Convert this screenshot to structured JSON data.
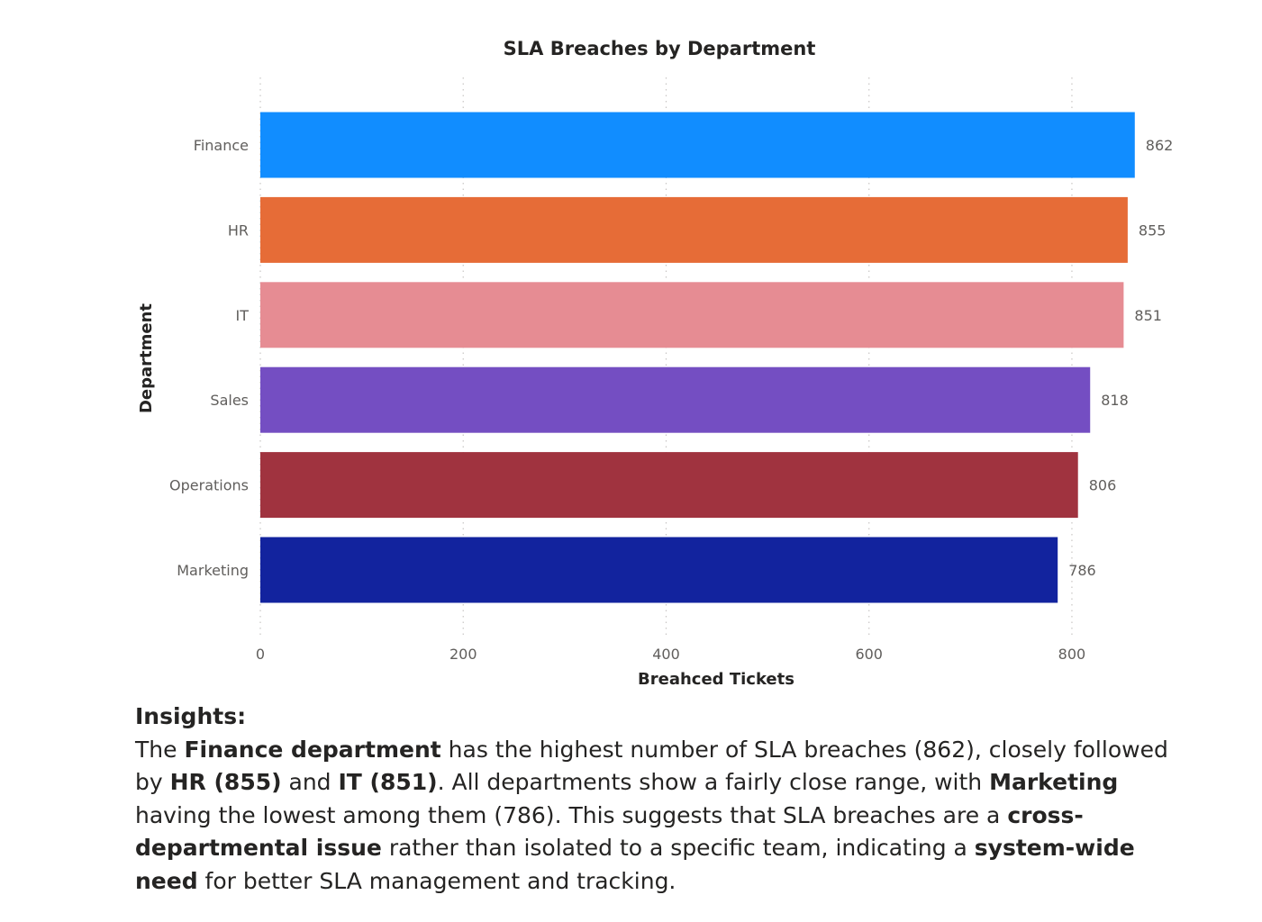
{
  "chart_data": {
    "type": "bar",
    "orientation": "horizontal",
    "title": "SLA Breaches by Department",
    "xlabel": "Breahced Tickets",
    "ylabel": "Department",
    "categories": [
      "Finance",
      "HR",
      "IT",
      "Sales",
      "Operations",
      "Marketing"
    ],
    "values": [
      862,
      855,
      851,
      818,
      806,
      786
    ],
    "data_labels": [
      "862",
      "855",
      "851",
      "818",
      "806",
      "786"
    ],
    "colors": [
      "#118DFF",
      "#E66C37",
      "#E68C93",
      "#744EC2",
      "#A0333F",
      "#12239E"
    ],
    "xlim": [
      0,
      862
    ],
    "xticks": [
      0,
      200,
      400,
      600,
      800
    ],
    "xtick_labels": [
      "0",
      "200",
      "400",
      "600",
      "800"
    ],
    "grid": "vertical dotted",
    "legend": "none"
  },
  "insights": {
    "title": "Insights:",
    "segments": [
      {
        "text": "The ",
        "bold": false
      },
      {
        "text": "Finance department",
        "bold": true
      },
      {
        "text": " has the highest number of SLA breaches (862), closely followed by ",
        "bold": false
      },
      {
        "text": "HR (855)",
        "bold": true
      },
      {
        "text": " and ",
        "bold": false
      },
      {
        "text": "IT (851)",
        "bold": true
      },
      {
        "text": ". All departments show a fairly close range, with ",
        "bold": false
      },
      {
        "text": "Marketing",
        "bold": true
      },
      {
        "text": " having the lowest among them (786). This suggests that SLA breaches are a ",
        "bold": false
      },
      {
        "text": "cross-departmental issue",
        "bold": true
      },
      {
        "text": " rather than isolated to a specific team, indicating a ",
        "bold": false
      },
      {
        "text": "system-wide need",
        "bold": true
      },
      {
        "text": " for better SLA management and tracking.",
        "bold": false
      }
    ]
  }
}
